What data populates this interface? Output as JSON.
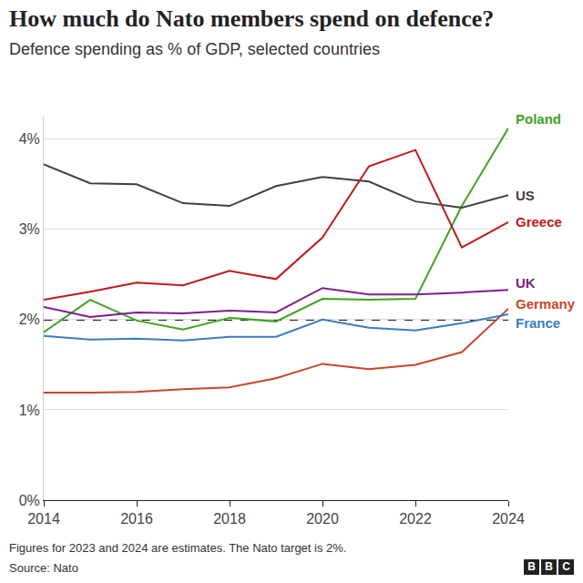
{
  "chart_data": {
    "type": "line",
    "title": "How much do Nato members spend on defence?",
    "subtitle": "Defence spending as % of GDP, selected countries",
    "note": "Figures for 2023 and 2024 are estimates. The Nato target is 2%.",
    "source": "Source: Nato",
    "logo": "BBC",
    "x": [
      2014,
      2015,
      2016,
      2017,
      2018,
      2019,
      2020,
      2021,
      2022,
      2023,
      2024
    ],
    "xlim": [
      2014,
      2024
    ],
    "xticks": [
      2014,
      2016,
      2018,
      2020,
      2022,
      2024
    ],
    "ylim": [
      0,
      4.25
    ],
    "yticks": [
      {
        "value": 0,
        "label": "0%"
      },
      {
        "value": 1,
        "label": "1%"
      },
      {
        "value": 2,
        "label": "2%"
      },
      {
        "value": 3,
        "label": "3%"
      },
      {
        "value": 4,
        "label": "4%"
      }
    ],
    "grid": true,
    "target_line": {
      "value": 2,
      "line_style": "dashed"
    },
    "series": [
      {
        "name": "Poland",
        "color": "#3ea31f",
        "values": [
          1.86,
          2.22,
          1.99,
          1.89,
          2.02,
          1.98,
          2.23,
          2.22,
          2.23,
          3.26,
          4.12
        ]
      },
      {
        "name": "US",
        "color": "#404040",
        "values": [
          3.72,
          3.51,
          3.5,
          3.29,
          3.26,
          3.48,
          3.58,
          3.53,
          3.31,
          3.24,
          3.38
        ]
      },
      {
        "name": "Greece",
        "color": "#c0191c",
        "values": [
          2.22,
          2.31,
          2.41,
          2.38,
          2.54,
          2.45,
          2.91,
          3.7,
          3.88,
          2.8,
          3.08
        ]
      },
      {
        "name": "UK",
        "color": "#7b1f8e",
        "values": [
          2.14,
          2.03,
          2.08,
          2.07,
          2.1,
          2.08,
          2.35,
          2.28,
          2.28,
          2.3,
          2.33
        ]
      },
      {
        "name": "Germany",
        "color": "#c8452b",
        "values": [
          1.19,
          1.19,
          1.2,
          1.23,
          1.25,
          1.35,
          1.51,
          1.45,
          1.5,
          1.64,
          2.12
        ]
      },
      {
        "name": "France",
        "color": "#3a7dbf",
        "values": [
          1.82,
          1.78,
          1.79,
          1.77,
          1.81,
          1.81,
          2.0,
          1.91,
          1.88,
          1.96,
          2.06
        ]
      }
    ]
  }
}
